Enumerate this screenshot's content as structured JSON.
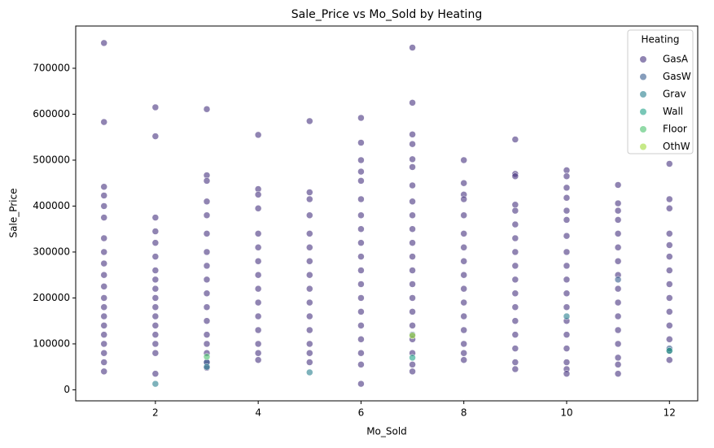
{
  "chart_data": {
    "type": "scatter",
    "title": "Sale_Price vs Mo_Sold by Heating",
    "x_label": "Mo_Sold",
    "y_label": "Sale_Price",
    "legend_title": "Heating",
    "legend": "upper right",
    "xlim": [
      0.45,
      12.55
    ],
    "xticks": [
      2,
      4,
      6,
      8,
      10,
      12
    ],
    "ylim": [
      -24000,
      792000
    ],
    "yticks": [
      0,
      100000,
      200000,
      300000,
      400000,
      500000,
      600000,
      700000
    ],
    "series": [
      {
        "name": "GasA",
        "color": "#46327e",
        "x": [
          1,
          1,
          1,
          1,
          1,
          1,
          1,
          1,
          1,
          1,
          1,
          1,
          1,
          1,
          1,
          1,
          1,
          1,
          1,
          1,
          2,
          2,
          2,
          2,
          2,
          2,
          2,
          2,
          2,
          2,
          2,
          2,
          2,
          2,
          2,
          2,
          2,
          3,
          3,
          3,
          3,
          3,
          3,
          3,
          3,
          3,
          3,
          3,
          3,
          3,
          3,
          3,
          3,
          3,
          4,
          4,
          4,
          4,
          4,
          4,
          4,
          4,
          4,
          4,
          4,
          4,
          4,
          4,
          4,
          5,
          5,
          5,
          5,
          5,
          5,
          5,
          5,
          5,
          5,
          5,
          5,
          5,
          5,
          5,
          6,
          6,
          6,
          6,
          6,
          6,
          6,
          6,
          6,
          6,
          6,
          6,
          6,
          6,
          6,
          6,
          6,
          6,
          6,
          7,
          7,
          7,
          7,
          7,
          7,
          7,
          7,
          7,
          7,
          7,
          7,
          7,
          7,
          7,
          7,
          7,
          7,
          7,
          7,
          7,
          8,
          8,
          8,
          8,
          8,
          8,
          8,
          8,
          8,
          8,
          8,
          8,
          8,
          8,
          8,
          8,
          9,
          9,
          9,
          9,
          9,
          9,
          9,
          9,
          9,
          9,
          9,
          9,
          9,
          9,
          9,
          9,
          9,
          10,
          10,
          10,
          10,
          10,
          10,
          10,
          10,
          10,
          10,
          10,
          10,
          10,
          10,
          10,
          10,
          10,
          10,
          11,
          11,
          11,
          11,
          11,
          11,
          11,
          11,
          11,
          11,
          11,
          11,
          11,
          11,
          11,
          11,
          12,
          12,
          12,
          12,
          12,
          12,
          12,
          12,
          12,
          12,
          12,
          12,
          12,
          12
        ],
        "values": [
          755000,
          583000,
          442000,
          423000,
          400000,
          375000,
          330000,
          300000,
          275000,
          250000,
          225000,
          200000,
          180000,
          160000,
          140000,
          120000,
          100000,
          80000,
          60000,
          40000,
          615000,
          552000,
          375000,
          345000,
          320000,
          290000,
          260000,
          240000,
          220000,
          200000,
          180000,
          160000,
          140000,
          120000,
          100000,
          80000,
          35000,
          611000,
          467000,
          455000,
          410000,
          380000,
          340000,
          300000,
          270000,
          240000,
          210000,
          180000,
          150000,
          120000,
          100000,
          80000,
          60000,
          48000,
          555000,
          437000,
          425000,
          395000,
          340000,
          310000,
          280000,
          250000,
          220000,
          190000,
          160000,
          130000,
          100000,
          80000,
          65000,
          585000,
          430000,
          415000,
          380000,
          340000,
          310000,
          280000,
          250000,
          220000,
          190000,
          160000,
          130000,
          100000,
          80000,
          60000,
          592000,
          538000,
          500000,
          475000,
          455000,
          415000,
          380000,
          350000,
          320000,
          290000,
          260000,
          230000,
          200000,
          170000,
          140000,
          110000,
          80000,
          55000,
          13000,
          745000,
          625000,
          556000,
          535000,
          502000,
          485000,
          445000,
          410000,
          380000,
          350000,
          320000,
          290000,
          260000,
          230000,
          200000,
          170000,
          140000,
          110000,
          80000,
          55000,
          40000,
          500000,
          450000,
          425000,
          415000,
          380000,
          340000,
          310000,
          280000,
          250000,
          220000,
          190000,
          160000,
          130000,
          100000,
          80000,
          65000,
          545000,
          470000,
          465000,
          403000,
          390000,
          360000,
          330000,
          300000,
          270000,
          240000,
          210000,
          180000,
          150000,
          120000,
          90000,
          60000,
          45000,
          478000,
          465000,
          440000,
          418000,
          390000,
          370000,
          335000,
          300000,
          270000,
          240000,
          210000,
          180000,
          150000,
          120000,
          90000,
          60000,
          45000,
          35000,
          446000,
          406000,
          390000,
          370000,
          340000,
          310000,
          280000,
          250000,
          220000,
          190000,
          160000,
          130000,
          100000,
          70000,
          55000,
          35000,
          492000,
          415000,
          395000,
          340000,
          315000,
          290000,
          260000,
          230000,
          200000,
          170000,
          140000,
          110000,
          85000,
          65000
        ]
      },
      {
        "name": "GasW",
        "color": "#365c8d",
        "x": [
          3,
          7,
          11,
          12
        ],
        "values": [
          60000,
          120000,
          240000,
          90000
        ]
      },
      {
        "name": "Grav",
        "color": "#277f8e",
        "x": [
          2,
          3,
          5,
          10
        ],
        "values": [
          13000,
          50000,
          38000,
          160000
        ]
      },
      {
        "name": "Wall",
        "color": "#1fa187",
        "x": [
          7,
          12
        ],
        "values": [
          70000,
          85000
        ]
      },
      {
        "name": "Floor",
        "color": "#4ac16d",
        "x": [
          3
        ],
        "values": [
          72000
        ]
      },
      {
        "name": "OthW",
        "color": "#a0da39",
        "x": [
          7
        ],
        "values": [
          118000
        ]
      }
    ]
  }
}
